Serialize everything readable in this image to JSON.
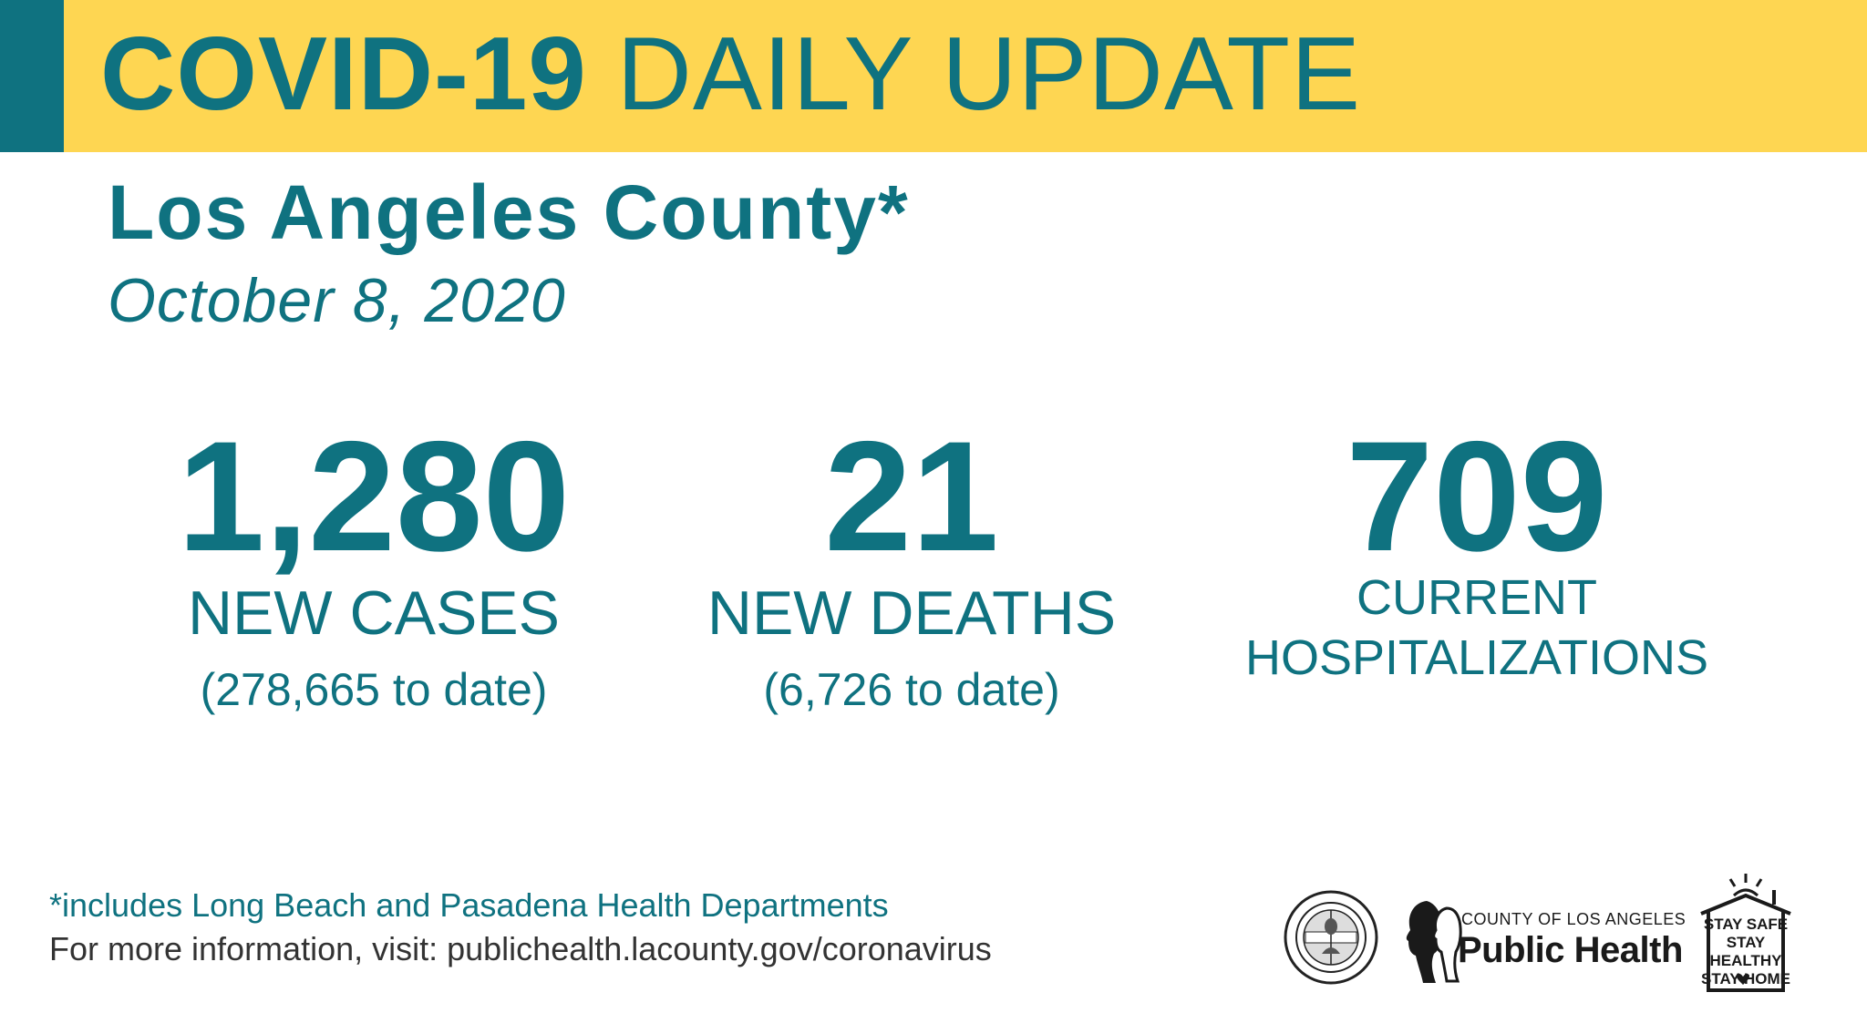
{
  "banner": {
    "title_bold": "COVID-19",
    "title_rest": "DAILY UPDATE",
    "background_color": "#fed652",
    "accent_color": "#0f7280"
  },
  "header": {
    "county": "Los Angeles County*",
    "date": "October 8, 2020"
  },
  "stats": {
    "cases": {
      "value": "1,280",
      "label": "NEW CASES",
      "sub": "(278,665 to date)"
    },
    "deaths": {
      "value": "21",
      "label": "NEW DEATHS",
      "sub": "(6,726 to date)"
    },
    "hospitalizations": {
      "value": "709",
      "label_line1": "CURRENT",
      "label_line2": "HOSPITALIZATIONS"
    }
  },
  "footer": {
    "footnote": "*includes Long Beach and Pasadena Health Departments",
    "more_info": "For more information, visit: publichealth.lacounty.gov/coronavirus"
  },
  "logos": {
    "seal_icon": "county-seal-icon",
    "public_health_small": "COUNTY OF LOS ANGELES",
    "public_health_big": "Public Health",
    "stay_line1": "STAY SAFE",
    "stay_line2": "STAY HEALTHY",
    "stay_line3": "STAY HOME"
  }
}
